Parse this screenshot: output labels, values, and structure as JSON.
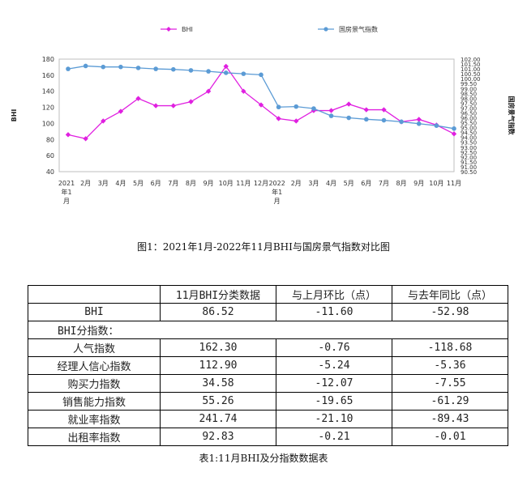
{
  "chart_data": {
    "type": "line",
    "categories": [
      "2021\n年1\n月",
      "2月",
      "3月",
      "4月",
      "5月",
      "6月",
      "7月",
      "8月",
      "9月",
      "10月",
      "11月",
      "12月",
      "2022\n年1\n月",
      "2月",
      "3月",
      "4月",
      "5月",
      "6月",
      "7月",
      "8月",
      "9月",
      "10月",
      "11月"
    ],
    "series": [
      {
        "name": "BHI",
        "axis": "left",
        "color": "#e020e0",
        "marker": "diamond",
        "values": [
          86,
          81,
          103,
          115,
          131,
          122,
          122,
          127,
          140,
          171,
          140,
          123,
          106,
          103,
          116,
          116,
          124,
          117,
          117,
          102,
          105,
          98,
          87
        ]
      },
      {
        "name": "国房景气指数",
        "axis": "right",
        "color": "#5b9bd5",
        "marker": "circle",
        "values": [
          101.0,
          101.3,
          101.2,
          101.2,
          101.1,
          101.0,
          100.95,
          100.85,
          100.75,
          100.6,
          100.5,
          100.4,
          97.1,
          97.15,
          96.95,
          96.2,
          96.0,
          95.85,
          95.75,
          95.6,
          95.4,
          95.2,
          94.9
        ]
      }
    ],
    "left_axis": {
      "label": "BHI",
      "ylim": [
        40,
        180
      ],
      "ticks": [
        "40",
        "60",
        "80",
        "100",
        "120",
        "140",
        "160",
        "180"
      ]
    },
    "right_axis": {
      "label": "国房景气指数",
      "ylim": [
        90.5,
        102.0
      ],
      "ticks": [
        "90.50",
        "91.00",
        "91.50",
        "92.00",
        "92.50",
        "93.00",
        "93.50",
        "94.00",
        "94.50",
        "95.00",
        "95.50",
        "96.00",
        "96.50",
        "97.00",
        "97.50",
        "98.00",
        "98.50",
        "99.00",
        "99.50",
        "100.00",
        "100.50",
        "101.00",
        "101.50",
        "102.00"
      ]
    },
    "legend": "top",
    "grid": false
  },
  "figure_caption": "图1：2021年1月-2022年11月BHI与国房景气指数对比图",
  "table": {
    "headers": [
      "",
      "11月BHI分类数据",
      "与上月环比（点）",
      "与去年同比（点）"
    ],
    "bhi_row": {
      "label": "BHI",
      "value": "86.52",
      "mom": "-11.60",
      "yoy": "-52.98"
    },
    "sub_header": "BHI分指数：",
    "rows": [
      {
        "label": "人气指数",
        "value": "162.30",
        "mom": "-0.76",
        "yoy": "-118.68"
      },
      {
        "label": "经理人信心指数",
        "value": "112.90",
        "mom": "-5.24",
        "yoy": "-5.36"
      },
      {
        "label": "购买力指数",
        "value": "34.58",
        "mom": "-12.07",
        "yoy": "-7.55"
      },
      {
        "label": "销售能力指数",
        "value": "55.26",
        "mom": "-19.65",
        "yoy": "-61.29"
      },
      {
        "label": "就业率指数",
        "value": "241.74",
        "mom": "-21.10",
        "yoy": "-89.43"
      },
      {
        "label": "出租率指数",
        "value": "92.83",
        "mom": "-0.21",
        "yoy": "-0.01"
      }
    ]
  },
  "table_caption": "表1:11月BHI及分指数数据表"
}
